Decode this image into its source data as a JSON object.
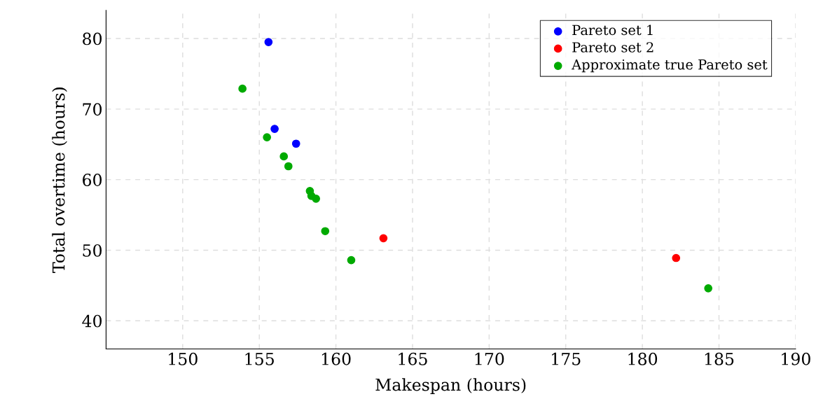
{
  "chart_data": {
    "type": "scatter",
    "xlabel": "Makespan (hours)",
    "ylabel": "Total overtime (hours)",
    "xlim": [
      145,
      190
    ],
    "ylim": [
      36,
      84
    ],
    "xticks": [
      150,
      155,
      160,
      165,
      170,
      175,
      180,
      185,
      190
    ],
    "yticks": [
      40,
      50,
      60,
      70,
      80
    ],
    "grid": true,
    "legend": "top right",
    "marker": "circle",
    "series": [
      {
        "name": "Pareto set 1",
        "color": "#0000ff",
        "x": [
          155.6,
          156.0,
          157.4
        ],
        "values": [
          79.5,
          67.2,
          65.1
        ]
      },
      {
        "name": "Pareto set 2",
        "color": "#ff0000",
        "x": [
          163.1,
          182.2
        ],
        "values": [
          51.7,
          48.9
        ]
      },
      {
        "name": "Approximate true Pareto set",
        "color": "#00aa00",
        "x": [
          153.9,
          155.5,
          156.6,
          156.9,
          158.3,
          158.4,
          158.7,
          159.3,
          161.0,
          184.3
        ],
        "values": [
          72.9,
          66.0,
          63.3,
          61.9,
          58.4,
          57.7,
          57.3,
          52.7,
          48.6,
          44.6
        ]
      }
    ]
  }
}
